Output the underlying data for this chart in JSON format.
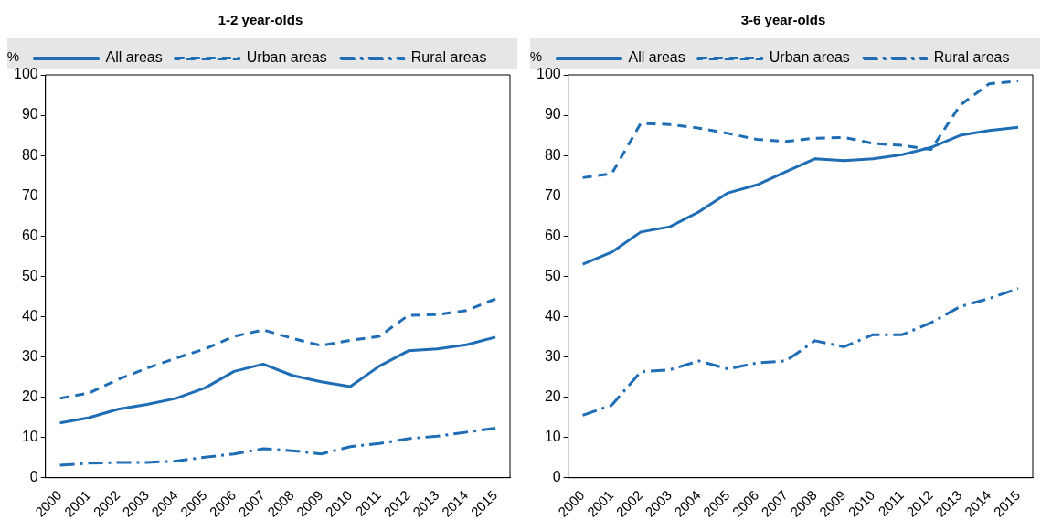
{
  "chart_data": [
    {
      "type": "line",
      "title": "1-2 year-olds",
      "ylabel": "%",
      "categories": [
        "2000",
        "2001",
        "2002",
        "2003",
        "2004",
        "2005",
        "2006",
        "2007",
        "2008",
        "2009",
        "2010",
        "2011",
        "2012",
        "2013",
        "2014",
        "2015"
      ],
      "ylim": [
        0,
        100
      ],
      "yticks": [
        0,
        10,
        20,
        30,
        40,
        50,
        60,
        70,
        80,
        90,
        100
      ],
      "grid": false,
      "legend": "top",
      "marker": "none",
      "series": [
        {
          "name": "All areas",
          "color": "#1f6db5",
          "line_style": "solid",
          "values": [
            13.6,
            14.9,
            17,
            18.2,
            19.7,
            22.3,
            26.4,
            28.2,
            25.4,
            23.8,
            22.6,
            27.7,
            31.5,
            32,
            33,
            34.9
          ]
        },
        {
          "name": "Urban areas",
          "color": "#1f6db5",
          "line_style": "dashed",
          "values": [
            19.7,
            21,
            24.4,
            27.2,
            29.7,
            32,
            35.1,
            36.7,
            34.6,
            32.8,
            34.1,
            35.1,
            40.3,
            40.5,
            41.5,
            44.4
          ]
        },
        {
          "name": "Rural areas",
          "color": "#1f6db5",
          "line_style": "dashdot",
          "values": [
            3.1,
            3.6,
            3.8,
            3.8,
            4.1,
            5.1,
            5.9,
            7.2,
            6.7,
            5.9,
            7.7,
            8.5,
            9.7,
            10.3,
            11.3,
            12.3
          ]
        }
      ]
    },
    {
      "type": "line",
      "title": "3-6 year-olds",
      "ylabel": "%",
      "categories": [
        "2000",
        "2001",
        "2002",
        "2003",
        "2004",
        "2005",
        "2006",
        "2007",
        "2008",
        "2009",
        "2010",
        "2011",
        "2012",
        "2013",
        "2014",
        "2015"
      ],
      "ylim": [
        0,
        100
      ],
      "yticks": [
        0,
        10,
        20,
        30,
        40,
        50,
        60,
        70,
        80,
        90,
        100
      ],
      "grid": false,
      "legend": "top",
      "marker": "none",
      "series": [
        {
          "name": "All areas",
          "color": "#1f6db5",
          "line_style": "solid",
          "values": [
            53,
            56,
            61,
            62.3,
            66,
            70.7,
            72.7,
            76,
            79.2,
            78.7,
            79.2,
            80.2,
            82,
            85,
            86.2,
            87
          ]
        },
        {
          "name": "Urban areas",
          "color": "#1f6db5",
          "line_style": "dashed",
          "values": [
            74.5,
            75.5,
            88,
            87.7,
            86.8,
            85.5,
            84,
            83.5,
            84.3,
            84.5,
            83,
            82.5,
            81.5,
            92.5,
            97.8,
            98.5
          ]
        },
        {
          "name": "Rural areas",
          "color": "#1f6db5",
          "line_style": "dashdot",
          "values": [
            15.5,
            18,
            26.3,
            26.8,
            29,
            27,
            28.5,
            29,
            34,
            32.5,
            35.5,
            35.5,
            38.5,
            42.5,
            44.5,
            47
          ]
        }
      ]
    }
  ]
}
